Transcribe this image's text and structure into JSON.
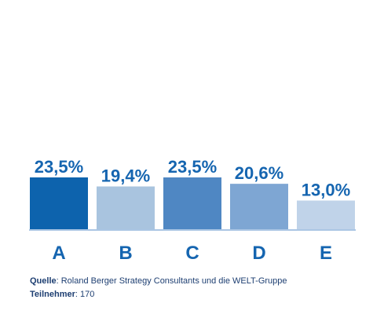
{
  "chart_data": {
    "type": "bar",
    "categories": [
      "A",
      "B",
      "C",
      "D",
      "E"
    ],
    "values": [
      23.5,
      19.4,
      23.5,
      20.6,
      13.0
    ],
    "value_labels": [
      "23,5%",
      "19,4%",
      "23,5%",
      "20,6%",
      "13,0%"
    ],
    "colors": [
      "#0d63ad",
      "#a9c4df",
      "#4f87c3",
      "#7ea6d3",
      "#c0d3e9"
    ],
    "unit": "%",
    "ylim": [
      0,
      23.5
    ],
    "grid": false,
    "legend": "none",
    "baseline_color": "#8fb3dc",
    "label_color": "#1565b0"
  },
  "footer": {
    "source_label": "Quelle",
    "source_text": ": Roland Berger Strategy Consultants und die WELT-Gruppe",
    "participants_label": "Teilnehmer",
    "participants_text": ": 170"
  }
}
